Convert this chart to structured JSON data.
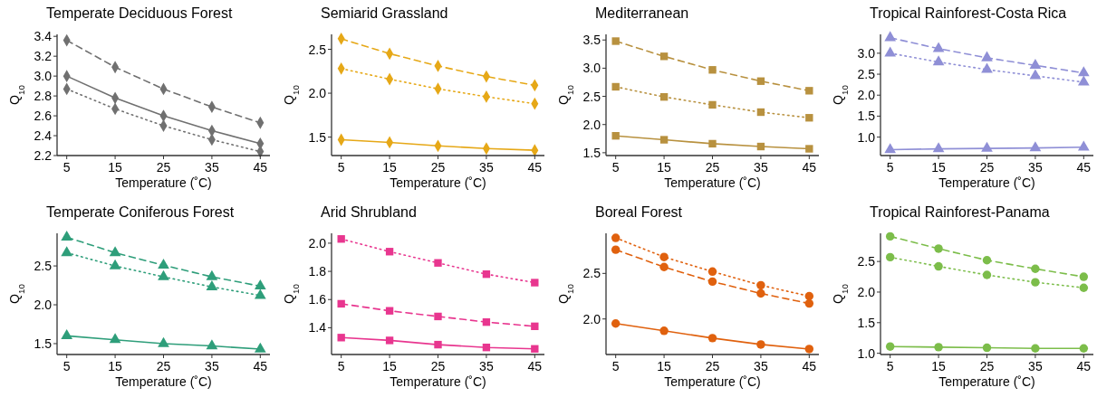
{
  "chart_data": [
    {
      "type": "line",
      "title": "Temperate Deciduous Forest",
      "xlabel": "Temperature (˚C)",
      "ylabel": "Q$_{10}$",
      "marker": "diamond",
      "x": [
        5,
        15,
        25,
        35,
        45
      ],
      "xlim": [
        3,
        47
      ],
      "xticks": [
        5,
        15,
        25,
        35,
        45
      ],
      "ylim": [
        2.2,
        3.42
      ],
      "yticks": [
        2.2,
        2.4,
        2.6,
        2.8,
        {
          "value": 3,
          "label": "3.0"
        },
        3.2,
        3.4
      ],
      "series": [
        {
          "color": "#707070",
          "line_style": "solid",
          "values": [
            3.0,
            2.78,
            2.6,
            2.45,
            2.32
          ]
        },
        {
          "color": "#707070",
          "line_style": "dashed",
          "values": [
            3.36,
            3.09,
            2.87,
            2.69,
            2.53
          ]
        },
        {
          "color": "#707070",
          "line_style": "dotted",
          "values": [
            2.87,
            2.67,
            2.5,
            2.36,
            2.24
          ]
        }
      ]
    },
    {
      "type": "line",
      "title": "Semiarid Grassland",
      "xlabel": "Temperature (˚C)",
      "ylabel": "Q$_{10}$",
      "marker": "diamond",
      "x": [
        5,
        15,
        25,
        35,
        45
      ],
      "xlim": [
        3,
        47
      ],
      "xticks": [
        5,
        15,
        25,
        35,
        45
      ],
      "ylim": [
        1.29,
        2.67
      ],
      "yticks": [
        1.5,
        {
          "value": 2,
          "label": "2.0"
        },
        2.5
      ],
      "series": [
        {
          "color": "#e6a817",
          "line_style": "solid",
          "values": [
            1.47,
            1.44,
            1.4,
            1.37,
            1.35
          ]
        },
        {
          "color": "#e6a817",
          "line_style": "dashed",
          "values": [
            2.62,
            2.45,
            2.31,
            2.19,
            2.09
          ]
        },
        {
          "color": "#e6a817",
          "line_style": "dotted",
          "values": [
            2.28,
            2.16,
            2.05,
            1.96,
            1.88
          ]
        }
      ]
    },
    {
      "type": "line",
      "title": "Mediterranean",
      "xlabel": "Temperature (˚C)",
      "ylabel": "Q$_{10}$",
      "marker": "square",
      "x": [
        5,
        15,
        25,
        35,
        45
      ],
      "xlim": [
        3,
        47
      ],
      "xticks": [
        5,
        15,
        25,
        35,
        45
      ],
      "ylim": [
        1.45,
        3.6
      ],
      "yticks": [
        1.5,
        {
          "value": 2,
          "label": "2.0"
        },
        2.5,
        {
          "value": 3,
          "label": "3.0"
        },
        3.5
      ],
      "series": [
        {
          "color": "#b8913f",
          "line_style": "solid",
          "values": [
            1.8,
            1.73,
            1.66,
            1.61,
            1.57
          ]
        },
        {
          "color": "#b8913f",
          "line_style": "dashed",
          "values": [
            3.48,
            3.21,
            2.97,
            2.77,
            2.6
          ]
        },
        {
          "color": "#b8913f",
          "line_style": "dotted",
          "values": [
            2.67,
            2.49,
            2.35,
            2.22,
            2.12
          ]
        }
      ]
    },
    {
      "type": "line",
      "title": "Tropical Rainforest-Costa Rica",
      "xlabel": "Temperature (˚C)",
      "ylabel": "Q$_{10}$",
      "marker": "triangle",
      "x": [
        5,
        15,
        25,
        35,
        45
      ],
      "xlim": [
        3,
        47
      ],
      "xticks": [
        5,
        15,
        25,
        35,
        45
      ],
      "ylim": [
        0.56,
        3.45
      ],
      "yticks": [
        {
          "value": 1,
          "label": "1.0"
        },
        1.5,
        {
          "value": 2,
          "label": "2.0"
        },
        2.5,
        {
          "value": 3,
          "label": "3.0"
        }
      ],
      "series": [
        {
          "color": "#8f8fd6",
          "line_style": "solid",
          "values": [
            0.7,
            0.72,
            0.73,
            0.74,
            0.76
          ]
        },
        {
          "color": "#8f8fd6",
          "line_style": "dashed",
          "values": [
            3.37,
            3.11,
            2.89,
            2.71,
            2.53
          ]
        },
        {
          "color": "#8f8fd6",
          "line_style": "dotted",
          "values": [
            3.0,
            2.79,
            2.61,
            2.46,
            2.31
          ]
        }
      ]
    },
    {
      "type": "line",
      "title": "Temperate Coniferous Forest",
      "xlabel": "Temperature (˚C)",
      "ylabel": "Q$_{10}$",
      "marker": "triangle",
      "x": [
        5,
        15,
        25,
        35,
        45
      ],
      "xlim": [
        3,
        47
      ],
      "xticks": [
        5,
        15,
        25,
        35,
        45
      ],
      "ylim": [
        1.36,
        2.92
      ],
      "yticks": [
        1.5,
        {
          "value": 2,
          "label": "2.0"
        },
        2.5
      ],
      "series": [
        {
          "color": "#2e9e7a",
          "line_style": "solid",
          "values": [
            1.6,
            1.55,
            1.5,
            1.47,
            1.43
          ]
        },
        {
          "color": "#2e9e7a",
          "line_style": "dashed",
          "values": [
            2.87,
            2.67,
            2.51,
            2.36,
            2.24
          ]
        },
        {
          "color": "#2e9e7a",
          "line_style": "dotted",
          "values": [
            2.67,
            2.5,
            2.36,
            2.23,
            2.12
          ]
        }
      ]
    },
    {
      "type": "line",
      "title": "Arid Shrubland",
      "xlabel": "Temperature (˚C)",
      "ylabel": "Q$_{10}$",
      "marker": "square",
      "x": [
        5,
        15,
        25,
        35,
        45
      ],
      "xlim": [
        3,
        47
      ],
      "xticks": [
        5,
        15,
        25,
        35,
        45
      ],
      "ylim": [
        1.21,
        2.07
      ],
      "yticks": [
        1.4,
        1.6,
        1.8,
        {
          "value": 2,
          "label": "2.0"
        }
      ],
      "series": [
        {
          "color": "#e8368f",
          "line_style": "solid",
          "values": [
            1.33,
            1.31,
            1.28,
            1.26,
            1.25
          ]
        },
        {
          "color": "#e8368f",
          "line_style": "dashed",
          "values": [
            1.57,
            1.52,
            1.48,
            1.44,
            1.41
          ]
        },
        {
          "color": "#e8368f",
          "line_style": "dotted",
          "values": [
            2.03,
            1.94,
            1.86,
            1.78,
            1.72
          ]
        }
      ]
    },
    {
      "type": "line",
      "title": "Boreal Forest",
      "xlabel": "Temperature (˚C)",
      "ylabel": "Q$_{10}$",
      "marker": "circle",
      "x": [
        5,
        15,
        25,
        35,
        45
      ],
      "xlim": [
        3,
        47
      ],
      "xticks": [
        5,
        15,
        25,
        35,
        45
      ],
      "ylim": [
        1.61,
        2.94
      ],
      "yticks": [
        {
          "value": 2,
          "label": "2.0"
        },
        2.5
      ],
      "series": [
        {
          "color": "#e0610e",
          "line_style": "solid",
          "values": [
            1.95,
            1.87,
            1.79,
            1.72,
            1.67
          ]
        },
        {
          "color": "#e0610e",
          "line_style": "dashed",
          "values": [
            2.76,
            2.57,
            2.41,
            2.28,
            2.17
          ]
        },
        {
          "color": "#e0610e",
          "line_style": "dotted",
          "values": [
            2.89,
            2.68,
            2.52,
            2.37,
            2.25
          ]
        }
      ]
    },
    {
      "type": "line",
      "title": "Tropical Rainforest-Panama",
      "xlabel": "Temperature (˚C)",
      "ylabel": "Q$_{10}$",
      "marker": "circle",
      "x": [
        5,
        15,
        25,
        35,
        45
      ],
      "xlim": [
        3,
        47
      ],
      "xticks": [
        5,
        15,
        25,
        35,
        45
      ],
      "ylim": [
        0.98,
        2.96
      ],
      "yticks": [
        {
          "value": 1,
          "label": "1.0"
        },
        1.5,
        {
          "value": 2,
          "label": "2.0"
        },
        2.5
      ],
      "series": [
        {
          "color": "#7cbd4a",
          "line_style": "solid",
          "values": [
            1.11,
            1.1,
            1.09,
            1.08,
            1.08
          ]
        },
        {
          "color": "#7cbd4a",
          "line_style": "dashed",
          "values": [
            2.91,
            2.71,
            2.52,
            2.38,
            2.25
          ]
        },
        {
          "color": "#7cbd4a",
          "line_style": "dotted",
          "values": [
            2.57,
            2.42,
            2.28,
            2.16,
            2.07
          ]
        }
      ]
    }
  ]
}
